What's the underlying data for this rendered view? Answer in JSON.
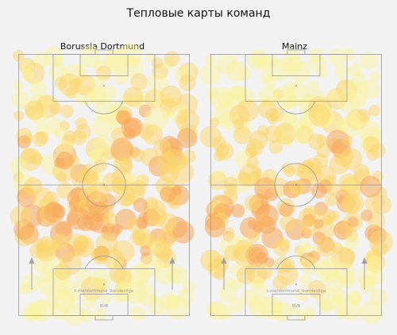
{
  "figure": {
    "title": "Тепловые карты команд"
  },
  "colors": {
    "background": "#f2f2f2",
    "pitch_lines": "#9a9a9a",
    "heat_low": "#fbf59a",
    "heat_mid": "#fbd56a",
    "heat_high": "#f7a85a",
    "arrow": "#a0a0a0"
  },
  "chart_data": [
    {
      "type": "heatmap",
      "title": "Borussia Dortmund",
      "watermark": "t.me/dortmund_bundesliga",
      "badge": "BVB",
      "direction": "attacking upward",
      "grid_rows": [
        "0-10",
        "10-20",
        "20-30",
        "30-40",
        "40-50",
        "50-60",
        "60-70",
        "70-80",
        "80-90",
        "90-100"
      ],
      "grid_cols": [
        "0-20",
        "20-40",
        "40-60",
        "60-80",
        "80-100"
      ],
      "density": [
        [
          0.5,
          0.3,
          0.45,
          0.35,
          0.55
        ],
        [
          0.45,
          0.5,
          0.3,
          0.55,
          0.5
        ],
        [
          0.55,
          0.6,
          0.4,
          0.7,
          0.6
        ],
        [
          0.7,
          0.65,
          0.5,
          0.8,
          0.7
        ],
        [
          0.6,
          0.7,
          0.55,
          0.6,
          0.65
        ],
        [
          0.65,
          0.8,
          0.7,
          0.75,
          0.8
        ],
        [
          0.7,
          0.85,
          0.9,
          0.8,
          0.75
        ],
        [
          0.55,
          0.7,
          0.75,
          0.65,
          0.6
        ],
        [
          0.4,
          0.55,
          0.6,
          0.5,
          0.45
        ],
        [
          0.3,
          0.35,
          0.45,
          0.4,
          0.3
        ]
      ]
    },
    {
      "type": "heatmap",
      "title": "Mainz",
      "watermark": "t.me/dortmund_bundesliga",
      "badge": "BVB",
      "direction": "attacking upward",
      "grid_rows": [
        "0-10",
        "10-20",
        "20-30",
        "30-40",
        "40-50",
        "50-60",
        "60-70",
        "70-80",
        "80-90",
        "90-100"
      ],
      "grid_cols": [
        "0-20",
        "20-40",
        "40-60",
        "60-80",
        "80-100"
      ],
      "density": [
        [
          0.35,
          0.3,
          0.5,
          0.3,
          0.35
        ],
        [
          0.4,
          0.45,
          0.35,
          0.5,
          0.45
        ],
        [
          0.5,
          0.6,
          0.4,
          0.55,
          0.55
        ],
        [
          0.6,
          0.65,
          0.55,
          0.7,
          0.6
        ],
        [
          0.5,
          0.6,
          0.65,
          0.6,
          0.55
        ],
        [
          0.7,
          0.75,
          0.7,
          0.8,
          0.7
        ],
        [
          0.75,
          0.85,
          0.8,
          0.75,
          0.7
        ],
        [
          0.6,
          0.7,
          0.65,
          0.7,
          0.55
        ],
        [
          0.45,
          0.55,
          0.6,
          0.5,
          0.4
        ],
        [
          0.3,
          0.35,
          0.4,
          0.35,
          0.3
        ]
      ]
    }
  ]
}
